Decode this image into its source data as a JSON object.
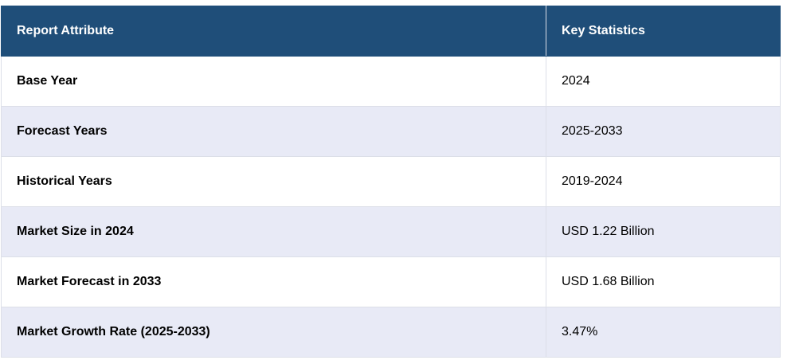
{
  "table": {
    "headers": [
      "Report Attribute",
      "Key Statistics"
    ],
    "rows": [
      {
        "attribute": "Base Year",
        "value": "2024"
      },
      {
        "attribute": "Forecast Years",
        "value": "2025-2033"
      },
      {
        "attribute": "Historical Years",
        "value": "2019-2024"
      },
      {
        "attribute": "Market Size in 2024",
        "value": "USD 1.22 Billion"
      },
      {
        "attribute": "Market Forecast in 2033",
        "value": "USD 1.68 Billion"
      },
      {
        "attribute": "Market Growth Rate (2025-2033)",
        "value": "3.47%"
      }
    ]
  },
  "colors": {
    "header_bg": "#1f4e79",
    "header_text": "#ffffff",
    "row_alt_bg": "#e8eaf6",
    "row_bg": "#ffffff"
  }
}
